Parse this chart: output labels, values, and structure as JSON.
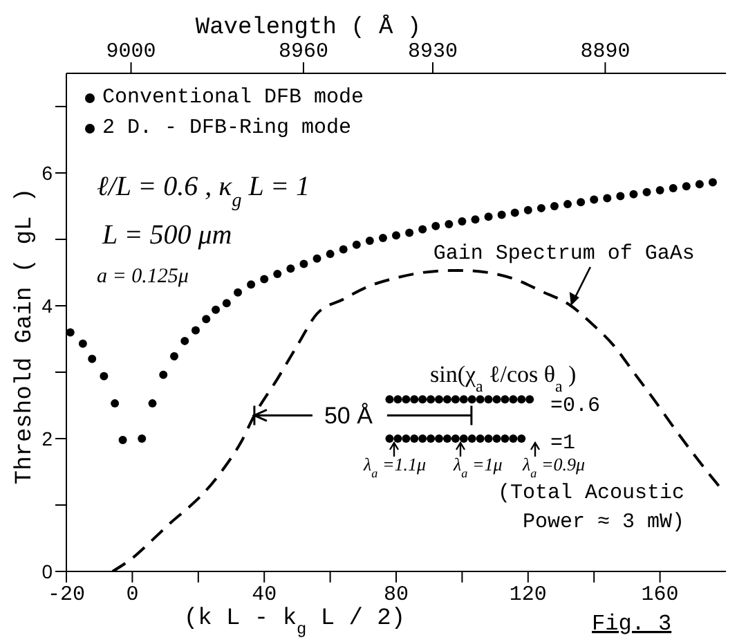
{
  "chart_data": {
    "type": "scatter",
    "xlabel": "(k L - k$_{g}$L / 2)",
    "ylabel": "Threshold Gain  ( gL )",
    "x2label": "Wavelength  ( Å )",
    "xlim": [
      -20,
      180
    ],
    "xticks": [
      -20,
      0,
      {
        "value": 20,
        "label": null
      },
      40,
      {
        "value": 60,
        "label": null
      },
      80,
      {
        "value": 100,
        "label": null
      },
      120,
      {
        "value": 140,
        "label": null
      },
      160
    ],
    "ylim": [
      0,
      7.5
    ],
    "yticks": [
      0,
      {
        "value": 1,
        "label": null
      },
      2,
      {
        "value": 3,
        "label": null
      },
      4,
      {
        "value": 5,
        "label": null
      },
      6,
      {
        "value": 7,
        "label": null
      }
    ],
    "x2lim": [
      9015,
      8862
    ],
    "x2ticks": [
      9000,
      8960,
      8930,
      8890
    ],
    "grid": false,
    "legend": "top left",
    "series": [
      {
        "name": "Conventional DFB mode",
        "type": "scatter",
        "marker": "circle",
        "color": "#000000",
        "x": [
          -18.8,
          -15,
          -12.2,
          -8.6,
          -5.3,
          -2.9,
          2.9,
          6.1,
          9.4,
          12.7,
          15.9,
          19.2,
          22.4,
          25.3,
          28.6,
          32,
          36,
          40,
          44,
          48,
          52,
          56,
          60,
          64,
          68,
          72,
          76,
          80,
          84,
          88,
          92,
          96,
          100,
          104,
          108,
          112,
          116,
          120,
          124,
          128,
          132,
          136,
          140,
          144,
          148,
          152,
          156,
          160,
          164,
          168,
          172,
          176
        ],
        "values": [
          3.6,
          3.43,
          3.2,
          2.94,
          2.53,
          1.98,
          2.0,
          2.53,
          2.96,
          3.24,
          3.47,
          3.63,
          3.8,
          3.94,
          4.04,
          4.2,
          4.32,
          4.4,
          4.48,
          4.56,
          4.63,
          4.71,
          4.78,
          4.85,
          4.92,
          4.98,
          5.02,
          5.06,
          5.1,
          5.15,
          5.2,
          5.23,
          5.27,
          5.3,
          5.34,
          5.37,
          5.4,
          5.44,
          5.47,
          5.5,
          5.53,
          5.56,
          5.6,
          5.62,
          5.65,
          5.68,
          5.71,
          5.74,
          5.77,
          5.8,
          5.83,
          5.86
        ]
      },
      {
        "name": "2 D. - DFB-Ring mode",
        "type": "scatter",
        "marker": "circle",
        "color": "#000000",
        "x": [
          78,
          80.5,
          83,
          85.5,
          88,
          90.5,
          93,
          95.5,
          98,
          100.5,
          103,
          105.5,
          108,
          110.5,
          113,
          115.5,
          118,
          120.5,
          78,
          80.5,
          83,
          85.5,
          88,
          90.5,
          93,
          95.5,
          98,
          100.5,
          103,
          105.5,
          108,
          110.5,
          113,
          115.5,
          118
        ],
        "values": [
          2.59,
          2.59,
          2.59,
          2.59,
          2.59,
          2.59,
          2.59,
          2.59,
          2.59,
          2.59,
          2.59,
          2.59,
          2.59,
          2.59,
          2.59,
          2.59,
          2.59,
          2.59,
          2.0,
          2.0,
          2.0,
          2.0,
          2.0,
          2.0,
          2.0,
          2.0,
          2.0,
          2.0,
          2.0,
          2.0,
          2.0,
          2.0,
          2.0,
          2.0,
          2.0
        ]
      },
      {
        "type": "line",
        "line_style": "dashed",
        "marker": "none",
        "color": "#000000",
        "x": [
          -6,
          0,
          6,
          12,
          17,
          22,
          28,
          33,
          37,
          44,
          50,
          56,
          64,
          72,
          80,
          88,
          96,
          101,
          108,
          116,
          124,
          133,
          140,
          146,
          152,
          158,
          164,
          170,
          176,
          179
        ],
        "values": [
          0,
          0.2,
          0.47,
          0.75,
          0.96,
          1.2,
          1.57,
          1.95,
          2.35,
          2.9,
          3.4,
          3.88,
          4.1,
          4.3,
          4.42,
          4.5,
          4.53,
          4.53,
          4.5,
          4.4,
          4.22,
          4.0,
          3.7,
          3.4,
          3.0,
          2.6,
          2.18,
          1.78,
          1.4,
          1.22
        ]
      }
    ],
    "annotations": [
      "ℓ/L = 0.6 ,  κ$_{g}$L = 1",
      "L = 500 μm",
      "a = 0.125μ",
      "sin(χ$_{a}$ℓ/cos θ$_{a}$)",
      "=0.6",
      "=1",
      "λ$_{a}$=1.1μ",
      "λ$_{a}$=1μ",
      "λ$_{a}$=0.9μ",
      "(Total Acoustic Power ≈ 3 mW)",
      "Fig. 3",
      {
        "text": "50 Å",
        "x": 37,
        "y": 2.35
      },
      {
        "text": "Gain Spectrum of GaAs",
        "x": 133,
        "y": 4.0
      }
    ]
  }
}
